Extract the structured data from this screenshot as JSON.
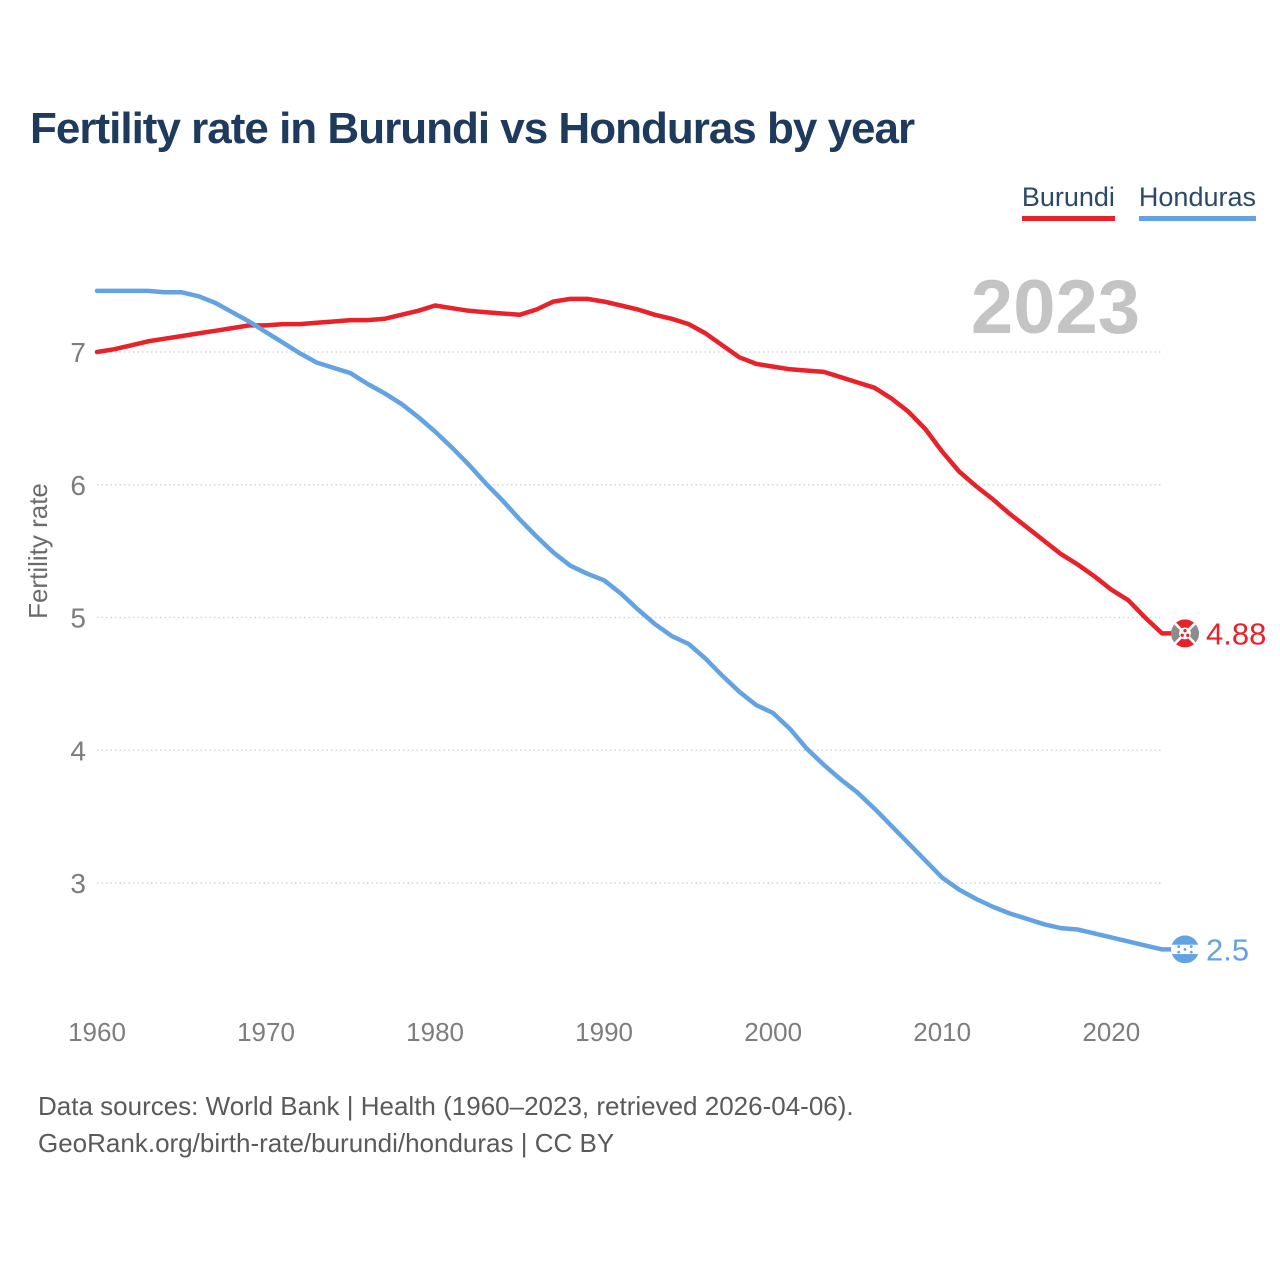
{
  "title": "Fertility rate in Burundi vs Honduras by year",
  "watermark_year": "2023",
  "y_axis_label": "Fertility rate",
  "footer": {
    "line1": "Data sources: World Bank | Health (1960–2023, retrieved 2026-04-06).",
    "line2": "GeoRank.org/birth-rate/burundi/honduras | CC BY"
  },
  "colors": {
    "title": "#1e3a5c",
    "burundi": "#e9222a",
    "honduras": "#64a3e3",
    "axis_text": "#7d7d7d",
    "gridline": "#d7d7d7",
    "watermark": "#c4c4c4",
    "flag_side_panel": "#8c8c8c"
  },
  "chart_data": {
    "type": "line",
    "title": "Fertility rate in Burundi vs Honduras by year",
    "xlabel": "",
    "ylabel": "Fertility rate",
    "ylim": [
      2.35,
      7.6
    ],
    "xlim": [
      1960,
      2023
    ],
    "yticks": [
      3,
      4,
      5,
      6,
      7
    ],
    "xticks": [
      1960,
      1970,
      1980,
      1990,
      2000,
      2010,
      2020
    ],
    "grid": "horizontal-dotted",
    "legend_position": "top-right",
    "x": [
      1960,
      1961,
      1962,
      1963,
      1964,
      1965,
      1966,
      1967,
      1968,
      1969,
      1970,
      1971,
      1972,
      1973,
      1974,
      1975,
      1976,
      1977,
      1978,
      1979,
      1980,
      1981,
      1982,
      1983,
      1984,
      1985,
      1986,
      1987,
      1988,
      1989,
      1990,
      1991,
      1992,
      1993,
      1994,
      1995,
      1996,
      1997,
      1998,
      1999,
      2000,
      2001,
      2002,
      2003,
      2004,
      2005,
      2006,
      2007,
      2008,
      2009,
      2010,
      2011,
      2012,
      2013,
      2014,
      2015,
      2016,
      2017,
      2018,
      2019,
      2020,
      2021,
      2022,
      2023
    ],
    "series": [
      {
        "name": "Burundi",
        "color": "#e9222a",
        "end_label": "4.88",
        "end_value": 4.88,
        "values": [
          7.0,
          7.02,
          7.05,
          7.08,
          7.1,
          7.12,
          7.14,
          7.16,
          7.18,
          7.2,
          7.2,
          7.21,
          7.21,
          7.22,
          7.23,
          7.24,
          7.24,
          7.25,
          7.28,
          7.31,
          7.35,
          7.33,
          7.31,
          7.3,
          7.29,
          7.28,
          7.32,
          7.38,
          7.4,
          7.4,
          7.38,
          7.35,
          7.32,
          7.28,
          7.25,
          7.21,
          7.14,
          7.05,
          6.96,
          6.91,
          6.89,
          6.87,
          6.86,
          6.85,
          6.81,
          6.77,
          6.73,
          6.65,
          6.55,
          6.42,
          6.25,
          6.1,
          5.99,
          5.89,
          5.78,
          5.68,
          5.58,
          5.48,
          5.4,
          5.31,
          5.21,
          5.13,
          5.0,
          4.88
        ]
      },
      {
        "name": "Honduras",
        "color": "#64a3e3",
        "end_label": "2.5",
        "end_value": 2.5,
        "values": [
          7.46,
          7.46,
          7.46,
          7.46,
          7.45,
          7.45,
          7.42,
          7.37,
          7.3,
          7.23,
          7.15,
          7.07,
          6.99,
          6.92,
          6.88,
          6.84,
          6.76,
          6.69,
          6.61,
          6.51,
          6.4,
          6.28,
          6.15,
          6.01,
          5.88,
          5.74,
          5.61,
          5.49,
          5.39,
          5.33,
          5.28,
          5.18,
          5.06,
          4.95,
          4.86,
          4.8,
          4.69,
          4.56,
          4.44,
          4.34,
          4.28,
          4.16,
          4.01,
          3.89,
          3.78,
          3.68,
          3.56,
          3.43,
          3.3,
          3.17,
          3.04,
          2.95,
          2.88,
          2.82,
          2.77,
          2.73,
          2.69,
          2.66,
          2.65,
          2.62,
          2.59,
          2.56,
          2.53,
          2.5
        ]
      }
    ]
  }
}
